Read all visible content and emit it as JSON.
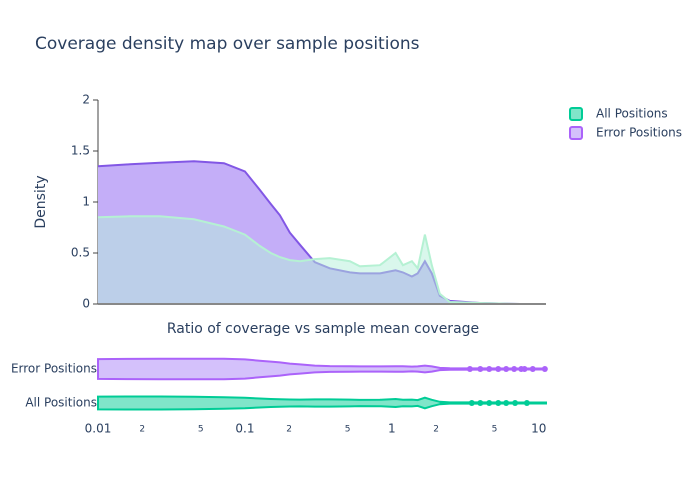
{
  "chart_data": [
    {
      "type": "area",
      "title": "Coverage density map over sample positions",
      "xlabel": "Ratio of coverage vs sample mean coverage",
      "ylabel": "Density",
      "x": [
        0.01,
        0.0165,
        0.0264,
        0.045,
        0.072,
        0.1,
        0.126,
        0.15,
        0.173,
        0.202,
        0.237,
        0.299,
        0.378,
        0.518,
        0.606,
        0.829,
        1.06,
        1.19,
        1.37,
        1.5,
        1.68,
        1.87,
        2.12,
        2.48,
        3.97,
        7.43,
        11.2
      ],
      "series": [
        {
          "name": "All Positions",
          "color": "#00cc96",
          "values": [
            0.85,
            0.86,
            0.86,
            0.83,
            0.76,
            0.68,
            0.57,
            0.5,
            0.46,
            0.43,
            0.42,
            0.44,
            0.45,
            0.42,
            0.37,
            0.38,
            0.5,
            0.38,
            0.42,
            0.35,
            0.68,
            0.38,
            0.1,
            0.02,
            0.01,
            0,
            0
          ]
        },
        {
          "name": "Error Positions",
          "color": "#ab63fa",
          "values": [
            1.35,
            1.37,
            1.385,
            1.4,
            1.38,
            1.3,
            1.12,
            0.98,
            0.87,
            0.7,
            0.58,
            0.41,
            0.35,
            0.31,
            0.3,
            0.3,
            0.33,
            0.31,
            0.27,
            0.3,
            0.42,
            0.3,
            0.08,
            0.03,
            0.01,
            0,
            0
          ]
        }
      ],
      "xlim": [
        0.01,
        11.2
      ],
      "log_x": true,
      "ylim": [
        0,
        2
      ],
      "yticks": [
        0,
        0.5,
        1,
        1.5,
        2
      ]
    },
    {
      "type": "violin",
      "categories": [
        "Error Positions",
        "All Positions"
      ],
      "outliers": [
        [
          3.4,
          4,
          4.6,
          5.3,
          6,
          6.8,
          7.6,
          8.0,
          9.1,
          11
        ],
        [
          3.5,
          4,
          4.6,
          5.3,
          6,
          6.9,
          8.3
        ]
      ],
      "xlim": [
        0.01,
        11.2
      ],
      "log_x": true,
      "xticks": [
        {
          "value": 0.01,
          "label": "0.01"
        },
        {
          "value": 0.02,
          "label": "2"
        },
        {
          "value": 0.05,
          "label": "5"
        },
        {
          "value": 0.1,
          "label": "0.1"
        },
        {
          "value": 0.2,
          "label": "2"
        },
        {
          "value": 0.5,
          "label": "5"
        },
        1,
        {
          "value": 2,
          "label": "2"
        },
        {
          "value": 5,
          "label": "5"
        },
        10
      ]
    }
  ]
}
